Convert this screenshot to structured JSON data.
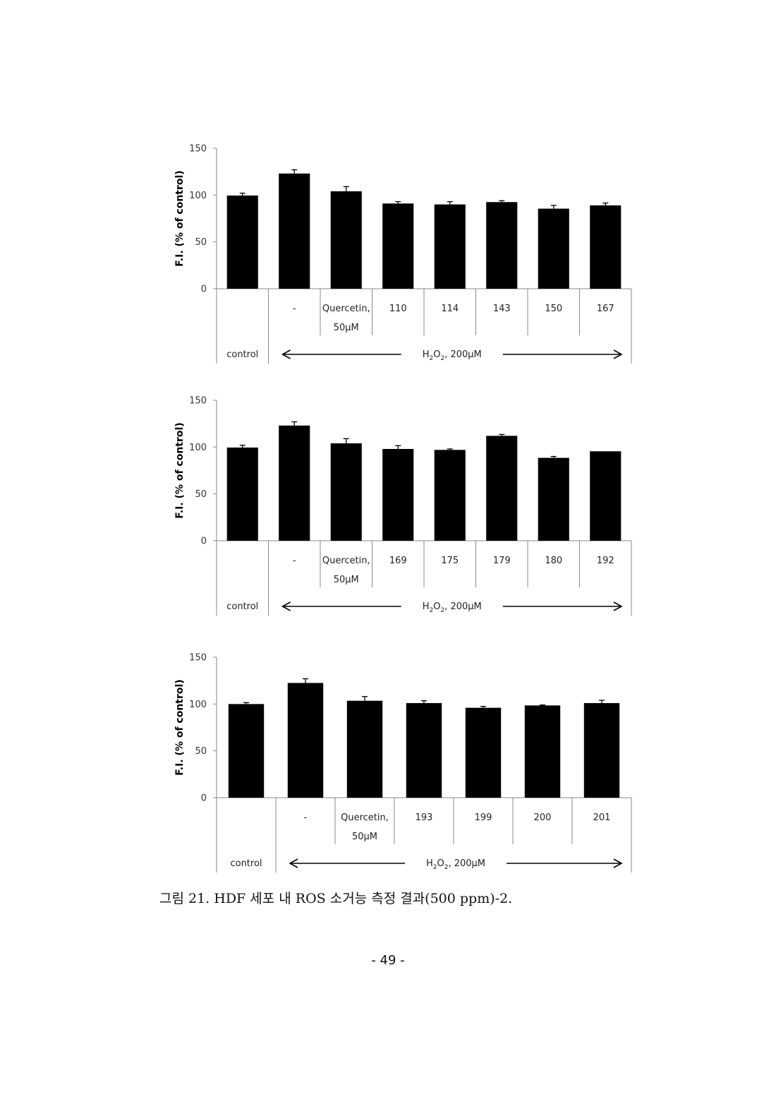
{
  "chart_data": [
    {
      "type": "bar",
      "ylabel": "F.I. (% of control)",
      "ylim": [
        0,
        150
      ],
      "yticks": [
        "0",
        "50",
        "100",
        "150"
      ],
      "categories": [
        "",
        "-",
        "Quercetin,\n50μM",
        "110",
        "114",
        "143",
        "150",
        "167"
      ],
      "values": [
        99.5,
        123,
        104,
        91,
        90,
        92.5,
        85.5,
        89
      ],
      "errors": [
        2.5,
        4,
        5,
        2,
        3,
        1.5,
        3.5,
        2.5
      ],
      "group_labels": {
        "control": "control",
        "treatment": "H2O2, 200μM"
      },
      "grid": false,
      "legend": "none"
    },
    {
      "type": "bar",
      "ylabel": "F.I. (% of control)",
      "ylim": [
        0,
        150
      ],
      "yticks": [
        "0",
        "50",
        "100",
        "150"
      ],
      "categories": [
        "",
        "-",
        "Quercetin,\n50μM",
        "169",
        "175",
        "179",
        "180",
        "192"
      ],
      "values": [
        99.5,
        123,
        104,
        98,
        97,
        112,
        88.5,
        95.5
      ],
      "errors": [
        2.5,
        4,
        5,
        3.5,
        1,
        1.5,
        1.5,
        0
      ],
      "group_labels": {
        "control": "control",
        "treatment": "H2O2, 200μM"
      },
      "grid": false,
      "legend": "none"
    },
    {
      "type": "bar",
      "ylabel": "F.I. (% of control)",
      "ylim": [
        0,
        150
      ],
      "yticks": [
        "0",
        "50",
        "100",
        "150"
      ],
      "categories": [
        "",
        "-",
        "Quercetin,\n50μM",
        "193",
        "199",
        "200",
        "201"
      ],
      "values": [
        100,
        122.5,
        103.5,
        101,
        96,
        98.5,
        101
      ],
      "errors": [
        1.5,
        4.5,
        4.5,
        2.5,
        1.5,
        0.5,
        3
      ],
      "group_labels": {
        "control": "control",
        "treatment": "H2O2, 200μM"
      },
      "grid": false,
      "legend": "none"
    }
  ],
  "caption": "그림 21. HDF 세포 내 ROS 소거능 측정 결과(500 ppm)-2.",
  "page_number": "- 49 -",
  "colors": {
    "bar": "#000000",
    "axis": "#888888",
    "text": "#222222"
  }
}
